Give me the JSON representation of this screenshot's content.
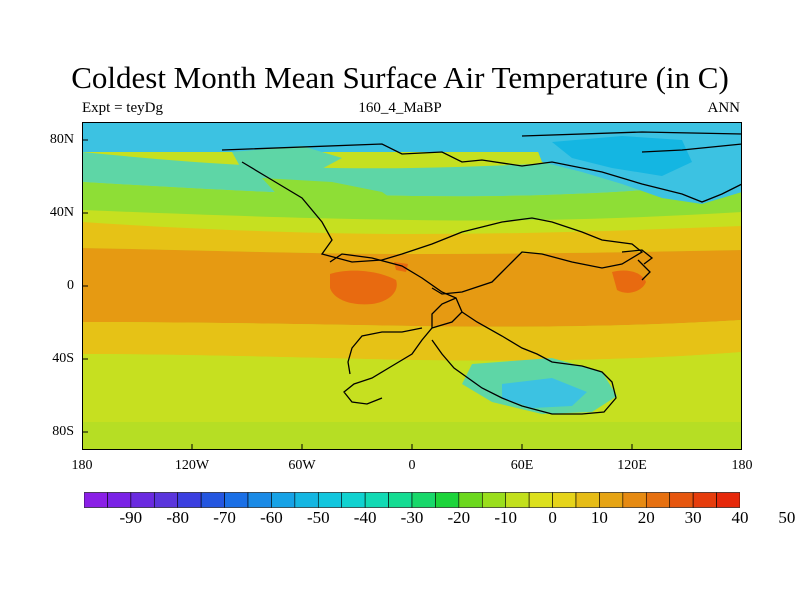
{
  "title": "Coldest Month Mean Surface Air Temperature (in C)",
  "subtitle_left": "Expt = teyDg",
  "subtitle_center": "160_4_MaBP",
  "subtitle_right": "ANN",
  "x_ticks": [
    "180",
    "120W",
    "60W",
    "0",
    "60E",
    "120E",
    "180"
  ],
  "y_ticks": [
    "80N",
    "40N",
    "0",
    "40S",
    "80S"
  ],
  "colorbar": {
    "labels": [
      "-90",
      "-80",
      "-70",
      "-60",
      "-50",
      "-40",
      "-30",
      "-20",
      "-10",
      "0",
      "10",
      "20",
      "30",
      "40",
      "50"
    ],
    "colors": [
      "#8a1fe6",
      "#7a22e6",
      "#6a2ae0",
      "#5a35dc",
      "#3b3fe0",
      "#2456e0",
      "#1a6fe6",
      "#1a8ae6",
      "#16a2e6",
      "#14b6e2",
      "#12c6de",
      "#10d2d0",
      "#12dab4",
      "#14dc92",
      "#18d86a",
      "#1cd43a",
      "#6cd81e",
      "#9ade1c",
      "#c2e01c",
      "#dce01c",
      "#e6d41a",
      "#e6bc16",
      "#e6a414",
      "#e68a12",
      "#e67010",
      "#e6560e",
      "#e63c0c",
      "#e6280a"
    ]
  },
  "colors": {
    "arctic": "#3cc2e2",
    "cold": "#5ed6a6",
    "cool": "#8ede36",
    "mild": "#c6e020",
    "warm": "#e6c216",
    "hot": "#e69a12",
    "hottest": "#e86a10"
  }
}
